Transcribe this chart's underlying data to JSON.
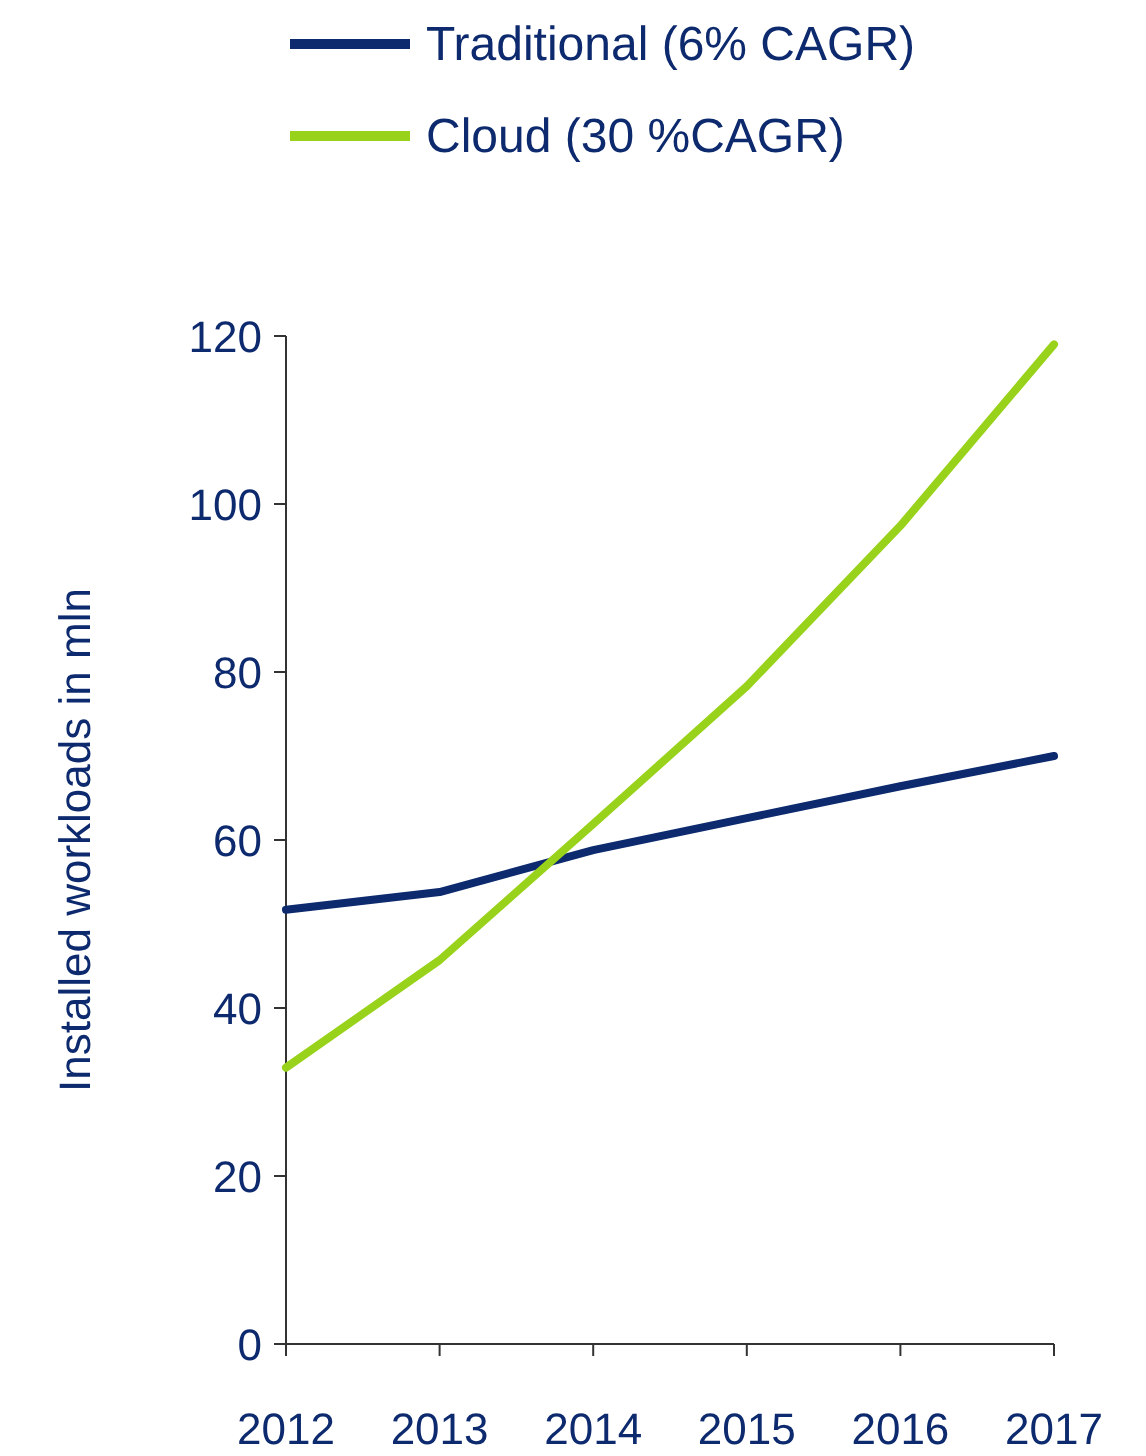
{
  "chart_data": {
    "type": "line",
    "ylabel": "Installed workloads in mln",
    "categories": [
      "2012",
      "2013",
      "2014",
      "2015",
      "2016",
      "2017"
    ],
    "series": [
      {
        "name": "Traditional (6% CAGR)",
        "color": "#0d2a6e",
        "values": [
          51.7,
          53.8,
          58.8,
          62.6,
          66.4,
          70
        ]
      },
      {
        "name": "Cloud (30 %CAGR)",
        "color": "#99d21a",
        "values": [
          32.9,
          45.7,
          61.9,
          78.3,
          97.4,
          119
        ]
      }
    ],
    "ylim": [
      0,
      120
    ],
    "yticks": [
      0,
      20,
      40,
      60,
      80,
      100,
      120
    ],
    "grid": false,
    "legend": "top",
    "marker": "none",
    "line_style": "solid"
  }
}
